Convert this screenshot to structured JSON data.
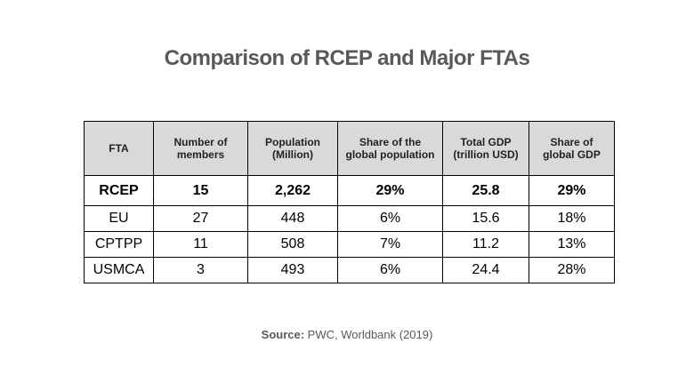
{
  "title": "Comparison of RCEP and Major FTAs",
  "chart_data": {
    "type": "table",
    "title": "Comparison of RCEP and Major FTAs",
    "columns": [
      "FTA",
      "Number of members",
      "Population (Million)",
      "Share of the global population",
      "Total GDP (trillion USD)",
      "Share of global GDP"
    ],
    "header_lines": [
      [
        "FTA"
      ],
      [
        "Number of",
        "members"
      ],
      [
        "Population",
        "(Million)"
      ],
      [
        "Share of the",
        "global population"
      ],
      [
        "Total GDP",
        "(trillion USD)"
      ],
      [
        "Share of",
        "global GDP"
      ]
    ],
    "rows": [
      [
        "RCEP",
        "15",
        "2,262",
        "29%",
        "25.8",
        "29%"
      ],
      [
        "EU",
        "27",
        "448",
        "6%",
        "15.6",
        "18%"
      ],
      [
        "CPTPP",
        "11",
        "508",
        "7%",
        "11.2",
        "13%"
      ],
      [
        "USMCA",
        "3",
        "493",
        "6%",
        "24.4",
        "28%"
      ]
    ],
    "highlighted_row": "RCEP"
  },
  "source": {
    "label": "Source:",
    "text": " PWC, Worldbank (2019)"
  },
  "colors": {
    "title": "#595959",
    "header_bg": "#d9d9d9",
    "border": "#000000"
  }
}
